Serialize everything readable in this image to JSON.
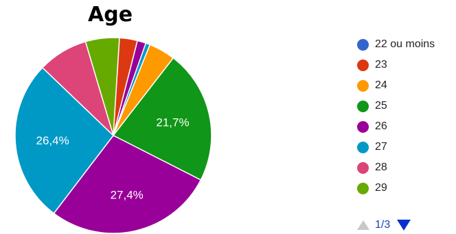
{
  "chart_data": {
    "type": "pie",
    "title": "Age",
    "slices": [
      {
        "label": "29",
        "value": 5.5,
        "color": "#66aa00"
      },
      {
        "label": "23",
        "value": 2.9,
        "color": "#dc3912"
      },
      {
        "label": "26",
        "value": 1.4,
        "color": "#990099"
      },
      {
        "label": "27",
        "value": 0.7,
        "color": "#0099c6"
      },
      {
        "label": "24",
        "value": 4.3,
        "color": "#ff9900"
      },
      {
        "label": "25",
        "value": 21.7,
        "color": "#109618",
        "data_label": "21,7%"
      },
      {
        "label": "26",
        "value": 27.4,
        "color": "#990099",
        "data_label": "27,4%"
      },
      {
        "label": "27",
        "value": 26.4,
        "color": "#0099c6",
        "data_label": "26,4%"
      },
      {
        "label": "28",
        "value": 8.1,
        "color": "#dd4477"
      }
    ],
    "legend": [
      {
        "label": "22 ou moins",
        "color": "#3366cc"
      },
      {
        "label": "23",
        "color": "#dc3912"
      },
      {
        "label": "24",
        "color": "#ff9900"
      },
      {
        "label": "25",
        "color": "#109618"
      },
      {
        "label": "26",
        "color": "#990099"
      },
      {
        "label": "27",
        "color": "#0099c6"
      },
      {
        "label": "28",
        "color": "#dd4477"
      },
      {
        "label": "29",
        "color": "#66aa00"
      }
    ],
    "legend_position": "right"
  },
  "pager": {
    "label": "1/3"
  }
}
